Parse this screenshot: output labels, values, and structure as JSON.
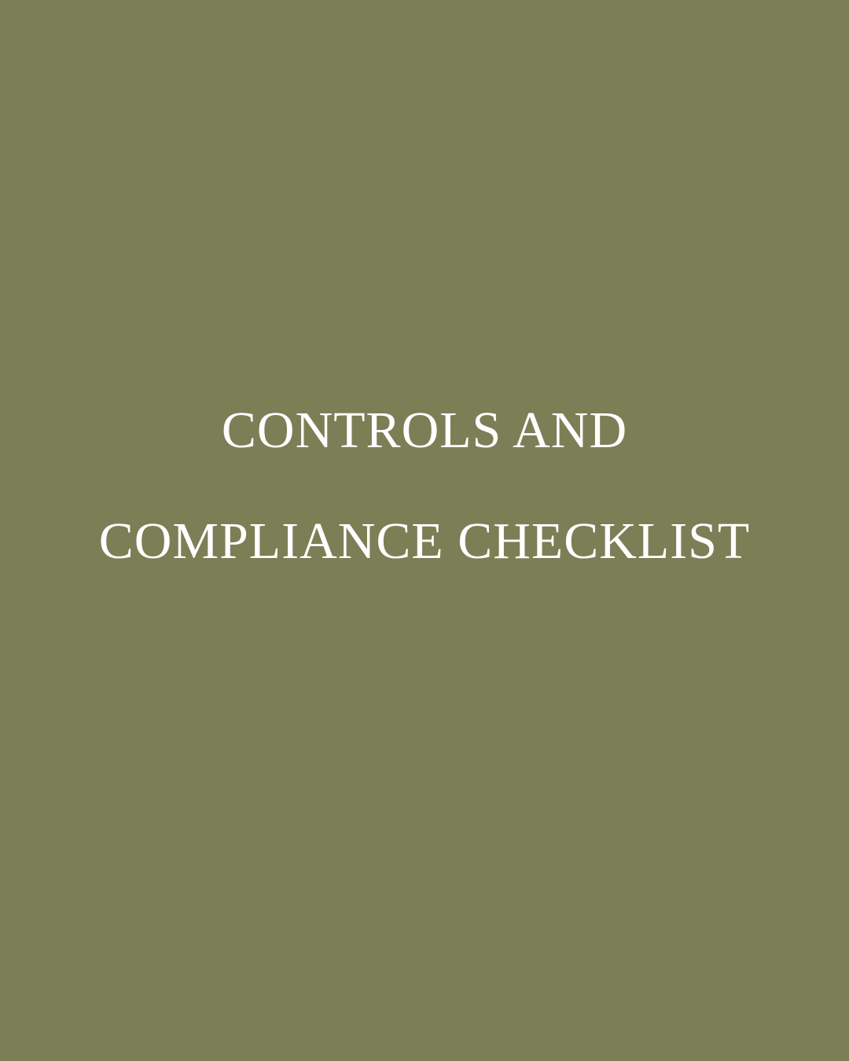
{
  "page": {
    "background_color": "#7c7e55",
    "text_color": "#ffffff"
  },
  "title": {
    "line1": "CONTROLS AND",
    "line2": "COMPLIANCE CHECKLIST"
  }
}
